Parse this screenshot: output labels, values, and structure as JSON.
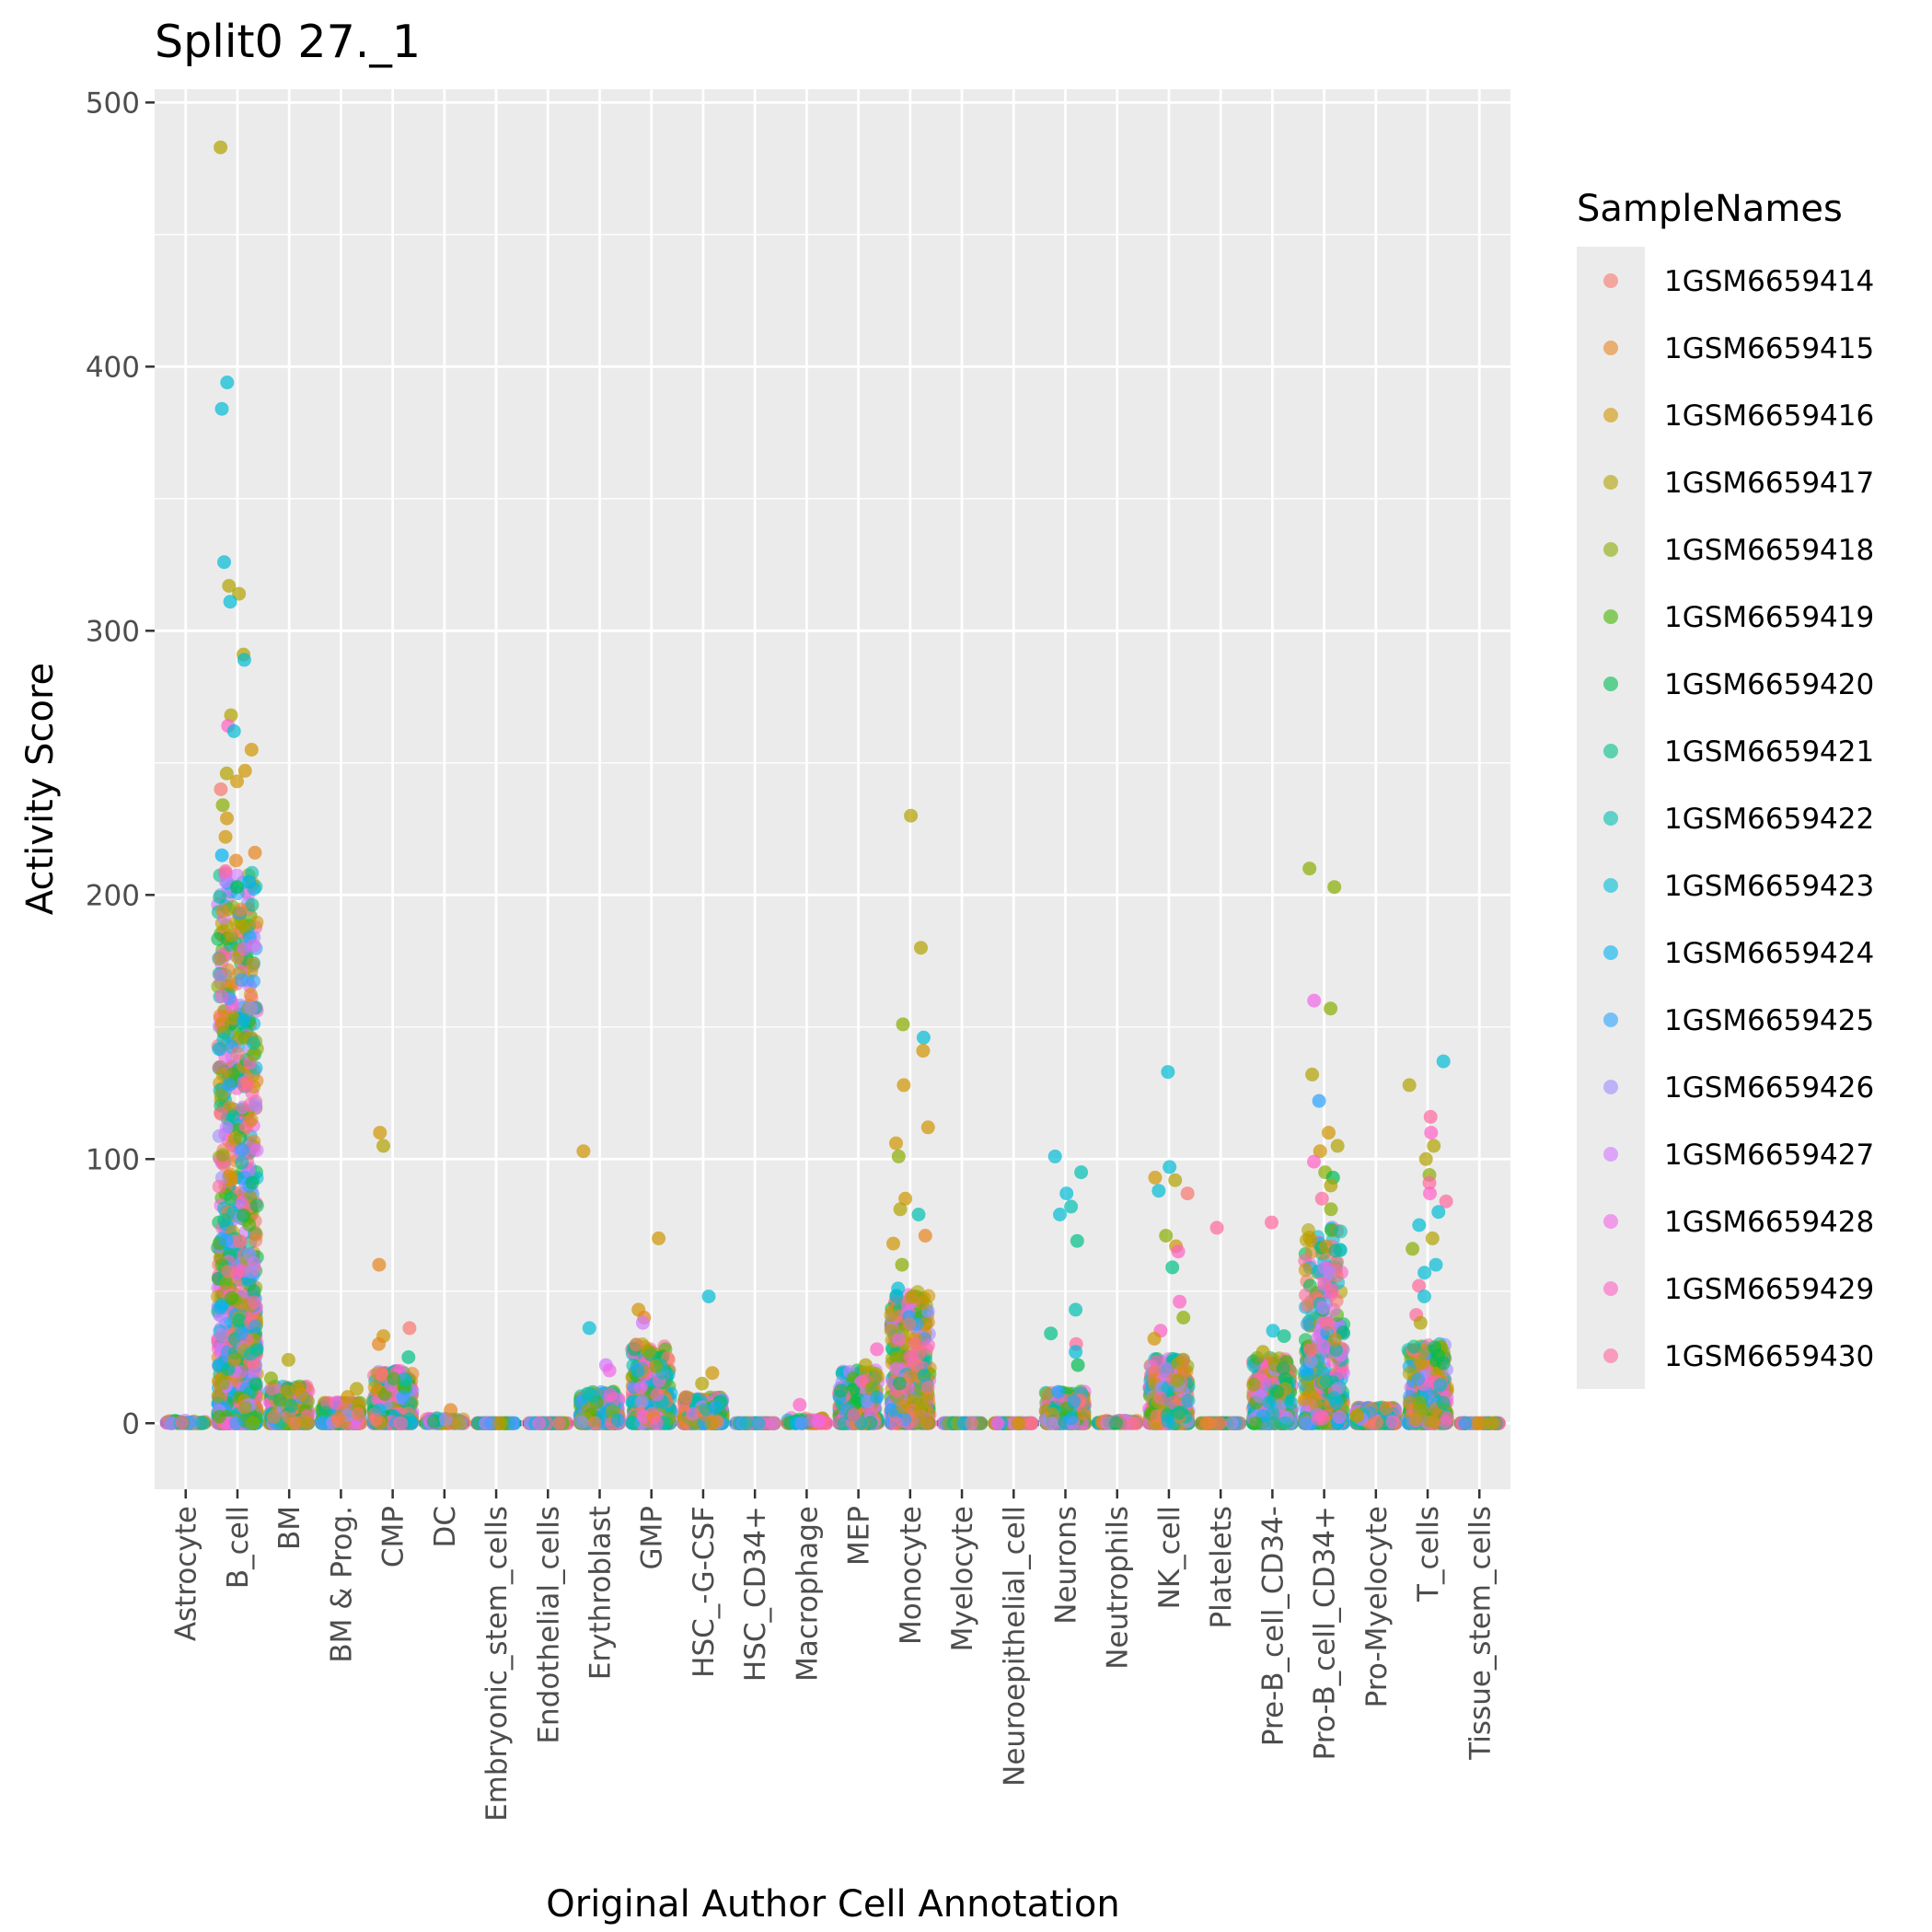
{
  "chart_data": {
    "type": "scatter",
    "title": "Split0 27._1",
    "xlabel": "Original Author Cell Annotation",
    "ylabel": "Activity Score",
    "ylim": [
      -25,
      505
    ],
    "yticks": [
      0,
      100,
      200,
      300,
      400,
      500
    ],
    "grid": true,
    "legend": {
      "title": "SampleNames",
      "position": "right"
    },
    "categories": [
      "Astrocyte",
      "B_cell",
      "BM",
      "BM & Prog.",
      "CMP",
      "DC",
      "Embryonic_stem_cells",
      "Endothelial_cells",
      "Erythroblast",
      "GMP",
      "HSC_-G-CSF",
      "HSC_CD34+",
      "Macrophage",
      "MEP",
      "Monocyte",
      "Myelocyte",
      "Neuroepithelial_cell",
      "Neurons",
      "Neutrophils",
      "NK_cell",
      "Platelets",
      "Pre-B_cell_CD34-",
      "Pro-B_cell_CD34+",
      "Pro-Myelocyte",
      "T_cells",
      "Tissue_stem_cells"
    ],
    "series": [
      {
        "name": "1GSM6659414",
        "color": "#F8766D"
      },
      {
        "name": "1GSM6659415",
        "color": "#E7851E"
      },
      {
        "name": "1GSM6659416",
        "color": "#D09400"
      },
      {
        "name": "1GSM6659417",
        "color": "#B2A100"
      },
      {
        "name": "1GSM6659418",
        "color": "#89AC00"
      },
      {
        "name": "1GSM6659419",
        "color": "#45B500"
      },
      {
        "name": "1GSM6659420",
        "color": "#00BC51"
      },
      {
        "name": "1GSM6659421",
        "color": "#00C087"
      },
      {
        "name": "1GSM6659422",
        "color": "#00C0B2"
      },
      {
        "name": "1GSM6659423",
        "color": "#00BCD6"
      },
      {
        "name": "1GSM6659424",
        "color": "#00B3F2"
      },
      {
        "name": "1GSM6659425",
        "color": "#29A3FF"
      },
      {
        "name": "1GSM6659426",
        "color": "#9C8DFF"
      },
      {
        "name": "1GSM6659427",
        "color": "#D277FF"
      },
      {
        "name": "1GSM6659428",
        "color": "#F166E8"
      },
      {
        "name": "1GSM6659429",
        "color": "#FF61C7"
      },
      {
        "name": "1GSM6659430",
        "color": "#FF689E"
      }
    ],
    "groups": [
      {
        "category": "Astrocyte",
        "max": 1,
        "outliers": []
      },
      {
        "category": "B_cell",
        "max": 210,
        "outliers": [
          [
            483,
            3
          ],
          [
            394,
            9
          ],
          [
            384,
            9
          ],
          [
            326,
            9
          ],
          [
            317,
            3
          ],
          [
            314,
            3
          ],
          [
            311,
            9
          ],
          [
            291,
            3
          ],
          [
            289,
            9
          ],
          [
            268,
            3
          ],
          [
            264,
            15
          ],
          [
            262,
            9
          ],
          [
            255,
            2
          ],
          [
            247,
            2
          ],
          [
            246,
            3
          ],
          [
            243,
            2
          ],
          [
            240,
            0
          ],
          [
            234,
            4
          ],
          [
            229,
            2
          ],
          [
            222,
            2
          ],
          [
            216,
            1
          ],
          [
            215,
            10
          ],
          [
            213,
            1
          ],
          [
            209,
            16
          ],
          [
            205,
            10
          ],
          [
            203,
            6
          ]
        ]
      },
      {
        "category": "BM",
        "max": 14,
        "outliers": [
          [
            24,
            3
          ],
          [
            17,
            4
          ]
        ]
      },
      {
        "category": "BM & Prog.",
        "max": 8,
        "outliers": [
          [
            13,
            3
          ],
          [
            10,
            2
          ]
        ]
      },
      {
        "category": "CMP",
        "max": 20,
        "outliers": [
          [
            110,
            2
          ],
          [
            105,
            3
          ],
          [
            60,
            1
          ],
          [
            36,
            0
          ],
          [
            33,
            2
          ],
          [
            30,
            1
          ],
          [
            25,
            7
          ]
        ]
      },
      {
        "category": "DC",
        "max": 2,
        "outliers": [
          [
            5,
            1
          ]
        ]
      },
      {
        "category": "Embryonic_stem_cells",
        "max": 0,
        "outliers": []
      },
      {
        "category": "Endothelial_cells",
        "max": 0,
        "outliers": []
      },
      {
        "category": "Erythroblast",
        "max": 12,
        "outliers": [
          [
            103,
            2
          ],
          [
            36,
            9
          ],
          [
            22,
            13
          ],
          [
            20,
            14
          ]
        ]
      },
      {
        "category": "GMP",
        "max": 30,
        "outliers": [
          [
            70,
            2
          ],
          [
            43,
            2
          ],
          [
            40,
            1
          ],
          [
            38,
            13
          ]
        ]
      },
      {
        "category": "HSC_-G-CSF",
        "max": 10,
        "outliers": [
          [
            48,
            9
          ],
          [
            19,
            2
          ],
          [
            15,
            3
          ]
        ]
      },
      {
        "category": "HSC_CD34+",
        "max": 0,
        "outliers": []
      },
      {
        "category": "Macrophage",
        "max": 2,
        "outliers": [
          [
            7,
            15
          ]
        ]
      },
      {
        "category": "MEP",
        "max": 20,
        "outliers": [
          [
            28,
            15
          ],
          [
            22,
            3
          ]
        ]
      },
      {
        "category": "Monocyte",
        "max": 50,
        "outliers": [
          [
            230,
            3
          ],
          [
            180,
            3
          ],
          [
            151,
            4
          ],
          [
            146,
            9
          ],
          [
            141,
            2
          ],
          [
            128,
            2
          ],
          [
            112,
            2
          ],
          [
            106,
            2
          ],
          [
            101,
            4
          ],
          [
            85,
            2
          ],
          [
            81,
            3
          ],
          [
            79,
            8
          ],
          [
            71,
            1
          ],
          [
            68,
            2
          ],
          [
            60,
            4
          ],
          [
            51,
            9
          ],
          [
            48,
            9
          ]
        ]
      },
      {
        "category": "Myelocyte",
        "max": 0,
        "outliers": []
      },
      {
        "category": "Neuroepithelial_cell",
        "max": 0,
        "outliers": []
      },
      {
        "category": "Neurons",
        "max": 12,
        "outliers": [
          [
            101,
            9
          ],
          [
            95,
            8
          ],
          [
            87,
            9
          ],
          [
            82,
            8
          ],
          [
            79,
            9
          ],
          [
            69,
            7
          ],
          [
            43,
            8
          ],
          [
            34,
            7
          ],
          [
            30,
            16
          ],
          [
            27,
            9
          ],
          [
            22,
            6
          ]
        ]
      },
      {
        "category": "Neutrophils",
        "max": 1,
        "outliers": []
      },
      {
        "category": "NK_cell",
        "max": 25,
        "outliers": [
          [
            133,
            9
          ],
          [
            97,
            9
          ],
          [
            93,
            2
          ],
          [
            92,
            3
          ],
          [
            88,
            9
          ],
          [
            87,
            0
          ],
          [
            71,
            4
          ],
          [
            67,
            2
          ],
          [
            65,
            15
          ],
          [
            59,
            7
          ],
          [
            46,
            15
          ],
          [
            40,
            4
          ],
          [
            35,
            15
          ],
          [
            32,
            2
          ]
        ]
      },
      {
        "category": "Platelets",
        "max": 0,
        "outliers": [
          [
            74,
            16
          ]
        ]
      },
      {
        "category": "Pre-B_cell_CD34-",
        "max": 25,
        "outliers": [
          [
            76,
            16
          ],
          [
            35,
            9
          ],
          [
            33,
            7
          ],
          [
            27,
            3
          ]
        ]
      },
      {
        "category": "Pro-B_cell_CD34+",
        "max": 75,
        "outliers": [
          [
            210,
            4
          ],
          [
            203,
            4
          ],
          [
            160,
            14
          ],
          [
            157,
            4
          ],
          [
            132,
            3
          ],
          [
            122,
            11
          ],
          [
            110,
            2
          ],
          [
            105,
            3
          ],
          [
            103,
            2
          ],
          [
            99,
            15
          ],
          [
            95,
            4
          ],
          [
            93,
            6
          ],
          [
            90,
            3
          ],
          [
            85,
            16
          ],
          [
            81,
            4
          ]
        ]
      },
      {
        "category": "Pro-Myelocyte",
        "max": 6,
        "outliers": []
      },
      {
        "category": "T_cells",
        "max": 30,
        "outliers": [
          [
            137,
            9
          ],
          [
            128,
            3
          ],
          [
            116,
            16
          ],
          [
            110,
            15
          ],
          [
            105,
            3
          ],
          [
            100,
            3
          ],
          [
            94,
            4
          ],
          [
            91,
            16
          ],
          [
            87,
            15
          ],
          [
            84,
            16
          ],
          [
            80,
            9
          ],
          [
            75,
            9
          ],
          [
            70,
            3
          ],
          [
            66,
            4
          ],
          [
            60,
            9
          ],
          [
            57,
            9
          ],
          [
            52,
            16
          ],
          [
            48,
            9
          ],
          [
            41,
            16
          ],
          [
            38,
            3
          ]
        ]
      },
      {
        "category": "Tissue_stem_cells",
        "max": 0,
        "outliers": []
      }
    ]
  }
}
